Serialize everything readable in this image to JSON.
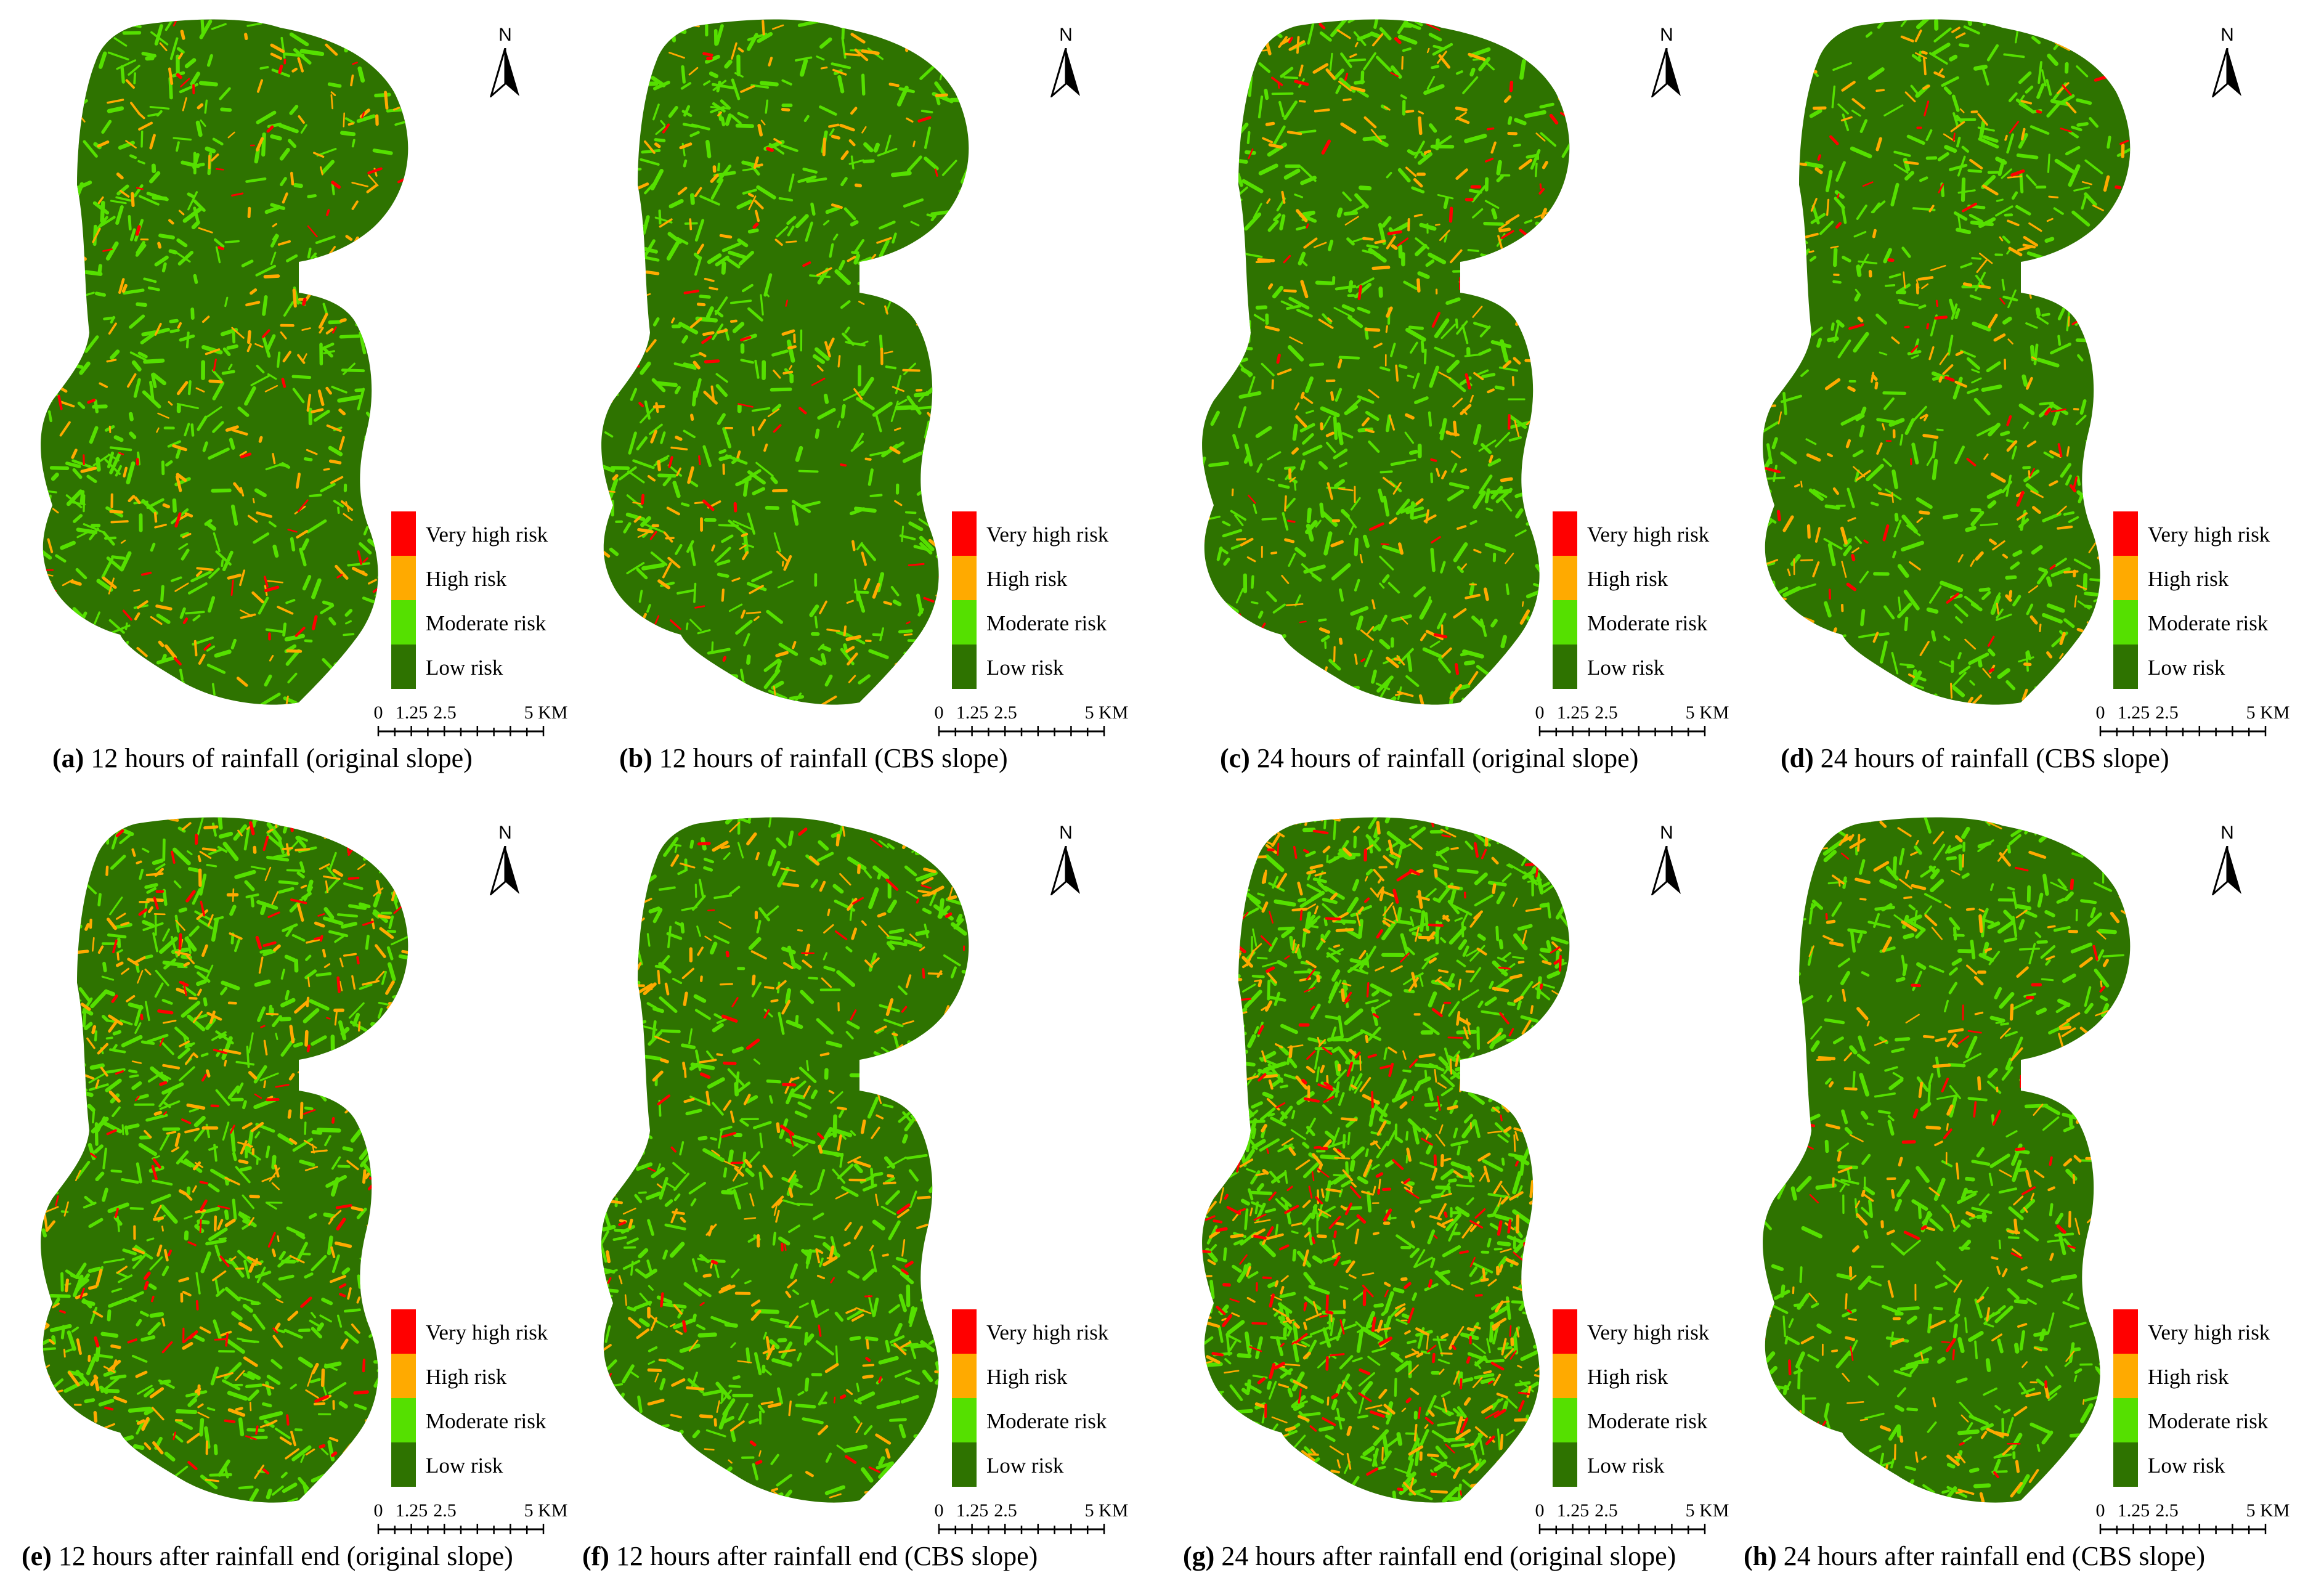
{
  "legend": {
    "items": [
      {
        "label": "Very high risk",
        "color": "#ff0000"
      },
      {
        "label": "High risk",
        "color": "#ffaa00"
      },
      {
        "label": "Moderate risk",
        "color": "#55e000"
      },
      {
        "label": "Low risk",
        "color": "#2e7300"
      }
    ]
  },
  "north_label": "N",
  "scale_bar": {
    "ticks": [
      "0",
      "1.25",
      "2.5",
      "5 KM"
    ]
  },
  "panels": [
    {
      "id": "a",
      "letter": "(a)",
      "caption": " 12 hours of rainfall (original slope)",
      "risk_intensity": 0.3
    },
    {
      "id": "b",
      "letter": "(b)",
      "caption": " 12 hours of rainfall (CBS slope)",
      "risk_intensity": 0.27
    },
    {
      "id": "c",
      "letter": "(c)",
      "caption": " 24 hours of rainfall (original slope)",
      "risk_intensity": 0.3
    },
    {
      "id": "d",
      "letter": "(d)",
      "caption": " 24 hours of rainfall (CBS slope)",
      "risk_intensity": 0.27
    },
    {
      "id": "e",
      "letter": "(e)",
      "caption": " 12 hours after rainfall end (original slope)",
      "risk_intensity": 0.5
    },
    {
      "id": "f",
      "letter": "(f)",
      "caption": " 12 hours after rainfall end (CBS slope)",
      "risk_intensity": 0.36
    },
    {
      "id": "g",
      "letter": "(g)",
      "caption": " 24 hours after rainfall end  (original slope)",
      "risk_intensity": 0.72
    },
    {
      "id": "h",
      "letter": "(h)",
      "caption": " 24 hours after rainfall end  (CBS slope)",
      "risk_intensity": 0.3
    }
  ]
}
